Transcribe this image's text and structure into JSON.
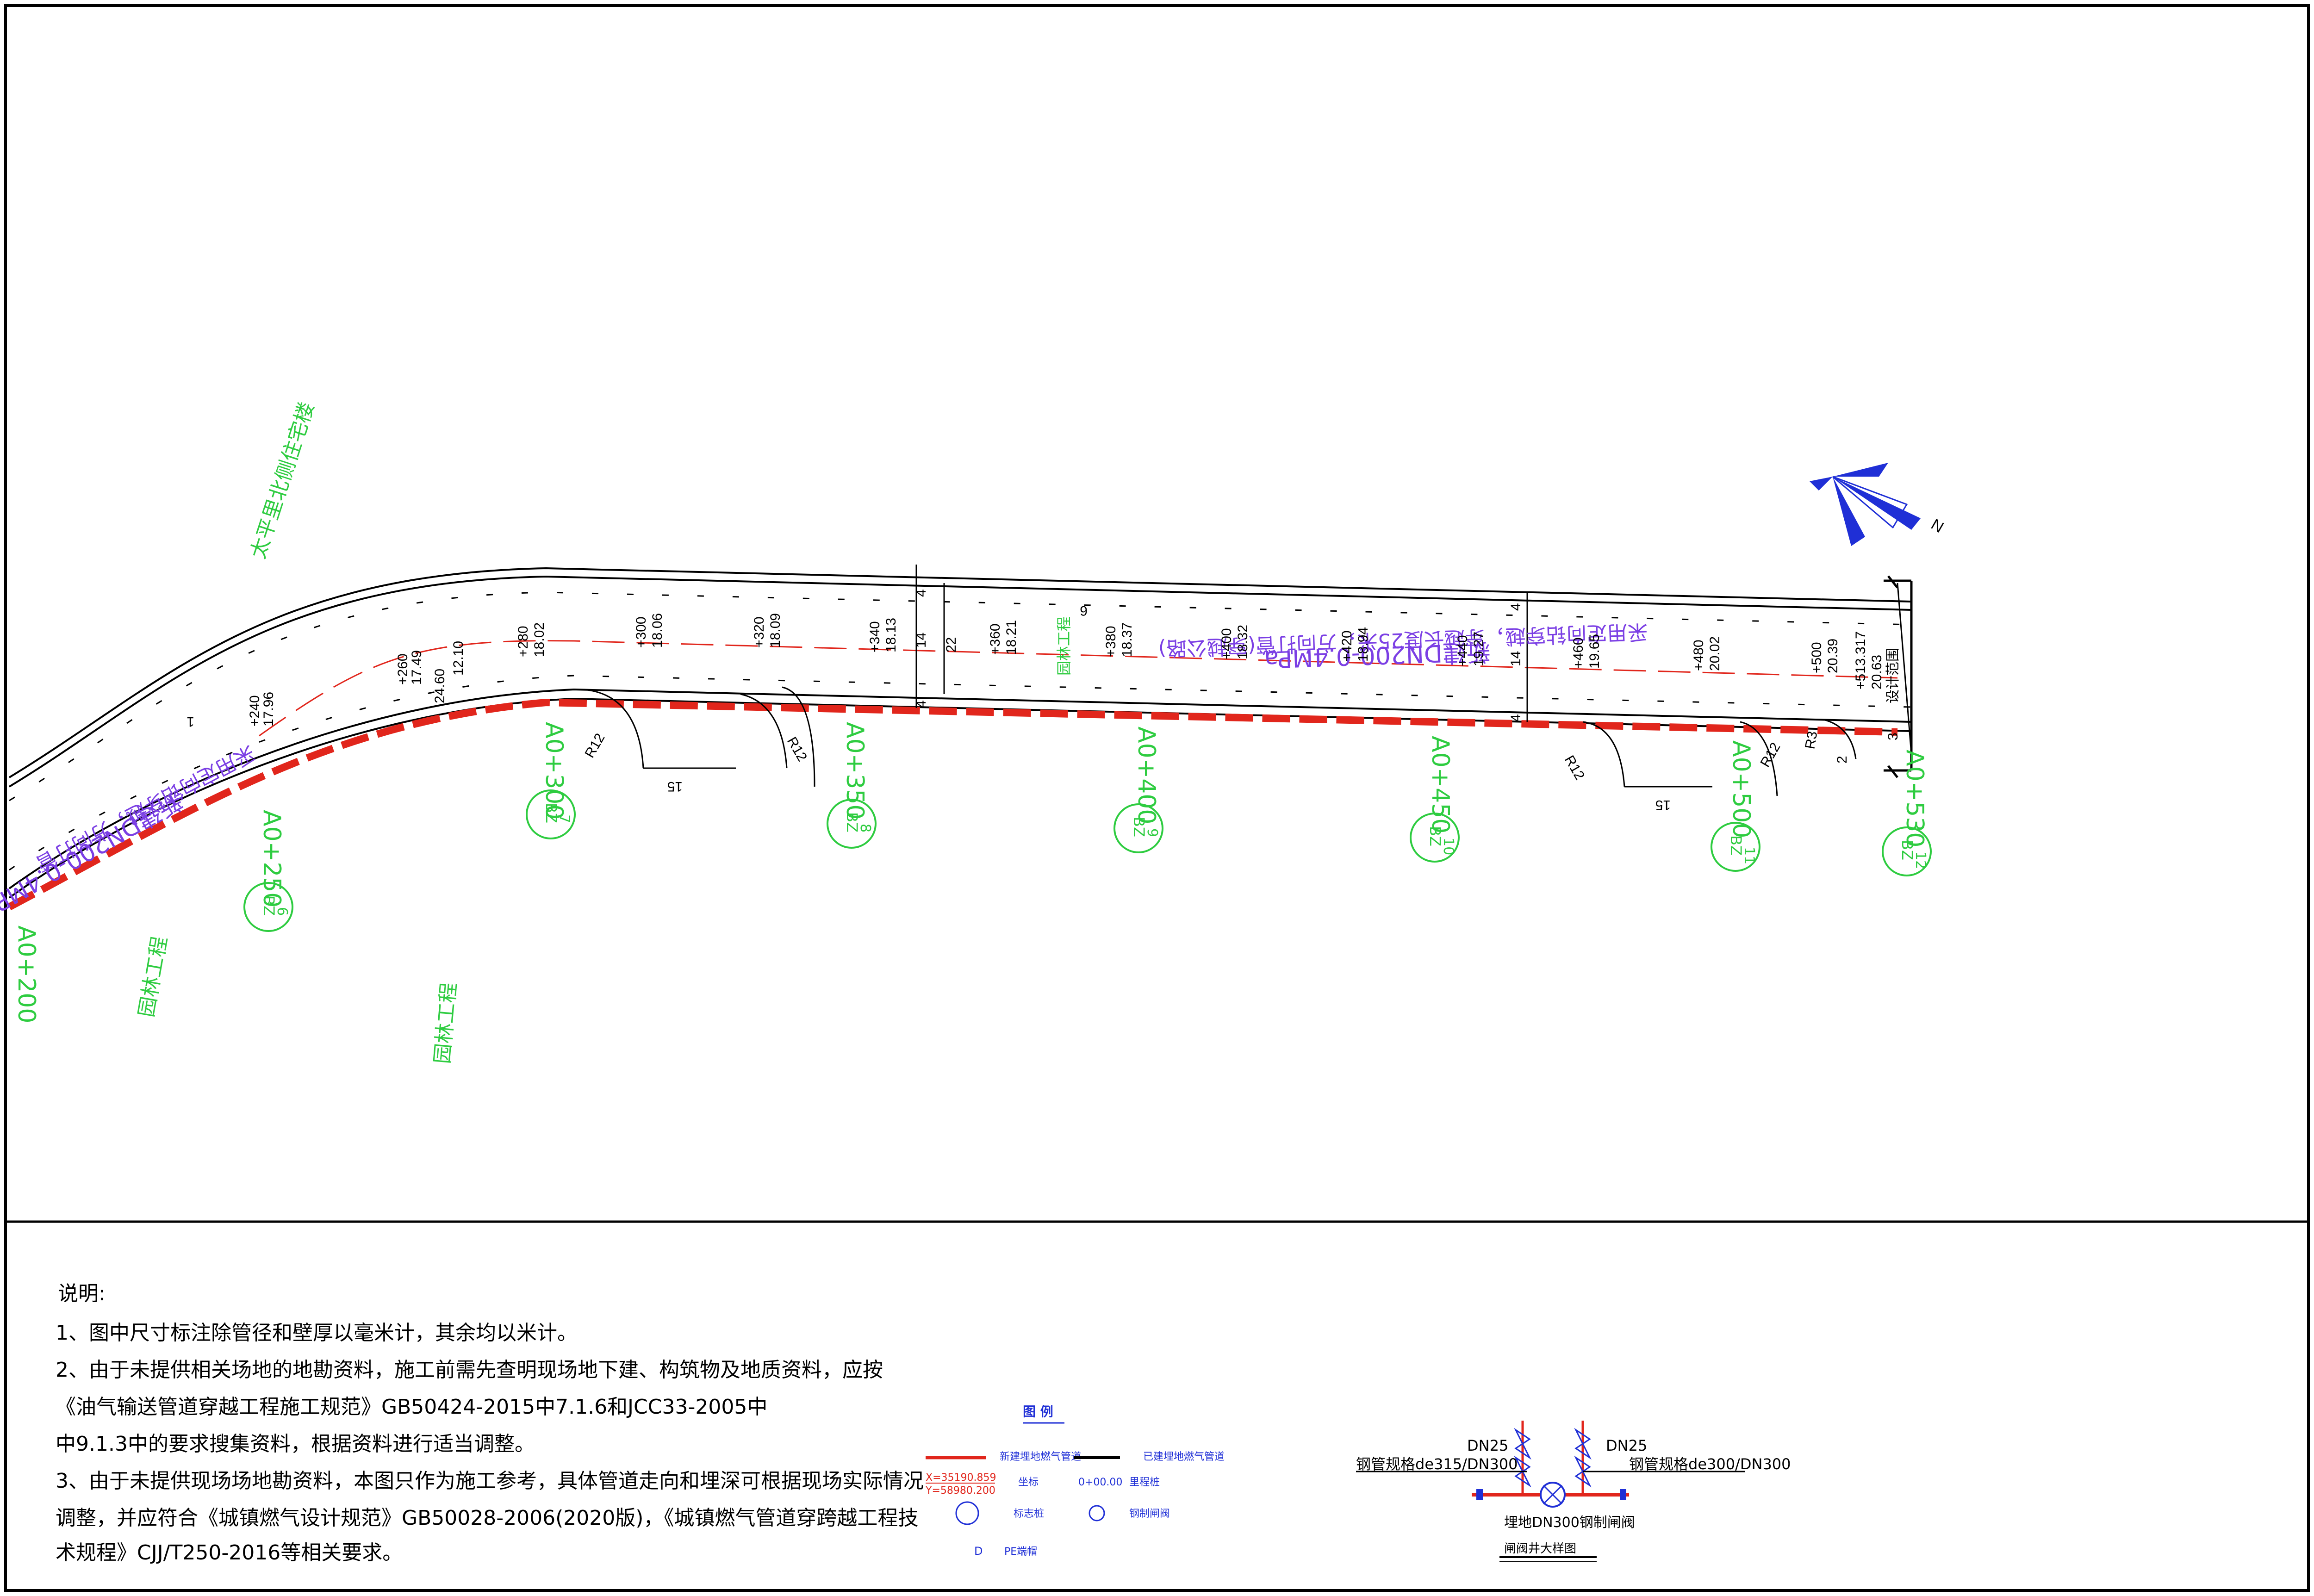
{
  "notes": {
    "heading": "说明:",
    "lines": [
      "1、图中尺寸标注除管径和壁厚以毫米计，其余均以米计。",
      "2、由于未提供相关场地的地勘资料，施工前需先查明现场地下建、构筑物及地质资料，应按",
      "《油气输送管道穿越工程施工规范》GB50424-2015中7.1.6和JCC33-2005中",
      "中9.1.3中的要求搜集资料，根据资料进行适当调整。",
      "3、由于未提供现场场地勘资料，本图只作为施工参考，具体管道走向和埋深可根据现场实际情况",
      "调整，并应符合《城镇燃气设计规范》GB50028-2006(2020版)，《城镇燃气管道穿跨越工程技",
      "术规程》CJJ/T250-2016等相关要求。"
    ]
  },
  "legend": {
    "title": "图 例",
    "new_pipe": "新建埋地燃气管道",
    "existing_pipe": "已建埋地燃气管道",
    "coord_x": "X=35190.859",
    "coord_y": "Y=58980.200",
    "coord_label": "坐标",
    "chainage_sym": "0+00.00",
    "chainage_label": "里程桩",
    "marker_label": "标志桩",
    "valve_label": "钢制闸阀",
    "cap_sym": "D",
    "cap_label": "PE端帽"
  },
  "valve_detail": {
    "dn25_left": "DN25",
    "dn25_right": "DN25",
    "left_pipe": "钢管规格de315/DN300",
    "right_pipe": "钢管规格de300/DN300",
    "valve": "埋地DN300钢制闸阀",
    "caption": "闸阀井大样图"
  },
  "map": {
    "labels_green": [
      "太平里北侧住宅楼",
      "园林工程",
      "园林工程",
      "园林工程"
    ],
    "pipe_note": "新建DN200-0.4MPa",
    "crossing_note": "采用定向钻穿越，穿越长度25米，方向打管(穿越公路)",
    "pipe_note_left": "新建DN200-0.4MPa",
    "crossing_note_left": "采用定向钻穿越，方向打管",
    "design_limit": "设计范围",
    "chainage_end": "+513.317",
    "chainage_end_val": "20.63",
    "stations": [
      "+240",
      "+260",
      "+280",
      "+300",
      "+320",
      "+340",
      "+360",
      "+380",
      "+400",
      "+420",
      "+440",
      "+460",
      "+480",
      "+500"
    ],
    "station_values": [
      "17.96",
      "17.49",
      "18.02",
      "18.06",
      "18.09",
      "18.13",
      "18.21",
      "18.37",
      "18.32",
      "18.94",
      "19.27",
      "19.65",
      "20.02",
      "20.39"
    ],
    "kilometer_marks": [
      "A0+200",
      "A0+250",
      "A0+300",
      "A0+350",
      "A0+400",
      "A0+450",
      "A0+500",
      "A0+530"
    ],
    "markers": [
      "BZ",
      "BZ",
      "BZ",
      "BZ",
      "BZ",
      "BZ",
      "BZ"
    ],
    "marker_nums": [
      "6",
      "7",
      "8",
      "9",
      "10",
      "11",
      "12"
    ],
    "dims": {
      "d4a": "4",
      "d14": "14",
      "d22": "22",
      "d4b": "4",
      "d14b": "14",
      "d4c": "4",
      "d15a": "15",
      "d15b": "15",
      "r12a": "R12",
      "r12b": "R12",
      "r12c": "R12",
      "r12d": "R12",
      "r3": "R3",
      "d2": "2",
      "d3": "3",
      "d6": "6",
      "d12": "12.10",
      "d24": "24.60",
      "d4d": "4",
      "d1": "1"
    },
    "north": "N"
  }
}
